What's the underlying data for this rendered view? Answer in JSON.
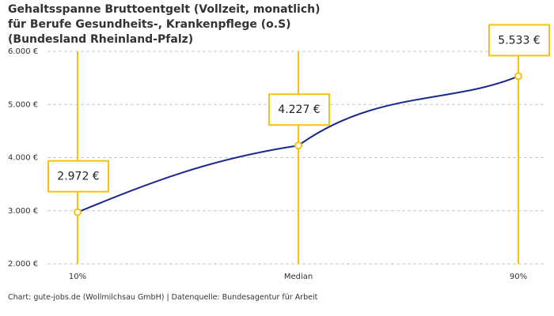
{
  "chart_data": {
    "type": "line",
    "title": "Gehaltsspanne Bruttoentgelt (Vollzeit, monatlich) für Berufe Gesundheits-, Krankenpflege (o.S) (Bundesland Rheinland-Pfalz)",
    "categories": [
      "10%",
      "Median",
      "90%"
    ],
    "values": [
      2972,
      4227,
      5533
    ],
    "value_labels": [
      "2.972 €",
      "4.227 €",
      "5.533 €"
    ],
    "color": "#1a2a8c",
    "marker_color": "#f5c211",
    "ylim": [
      2000,
      6000
    ],
    "yticks": [
      {
        "value": 2000,
        "label": "2.000 €"
      },
      {
        "value": 3000,
        "label": "3.000 €"
      },
      {
        "value": 4000,
        "label": "4.000 €"
      },
      {
        "value": 5000,
        "label": "5.000 €"
      },
      {
        "value": 6000,
        "label": "6.000 €"
      }
    ],
    "grid": true,
    "source": "Chart: gute-jobs.de (Wollmilchsau GmbH) | Datenquelle: Bundesagentur für Arbeit"
  }
}
